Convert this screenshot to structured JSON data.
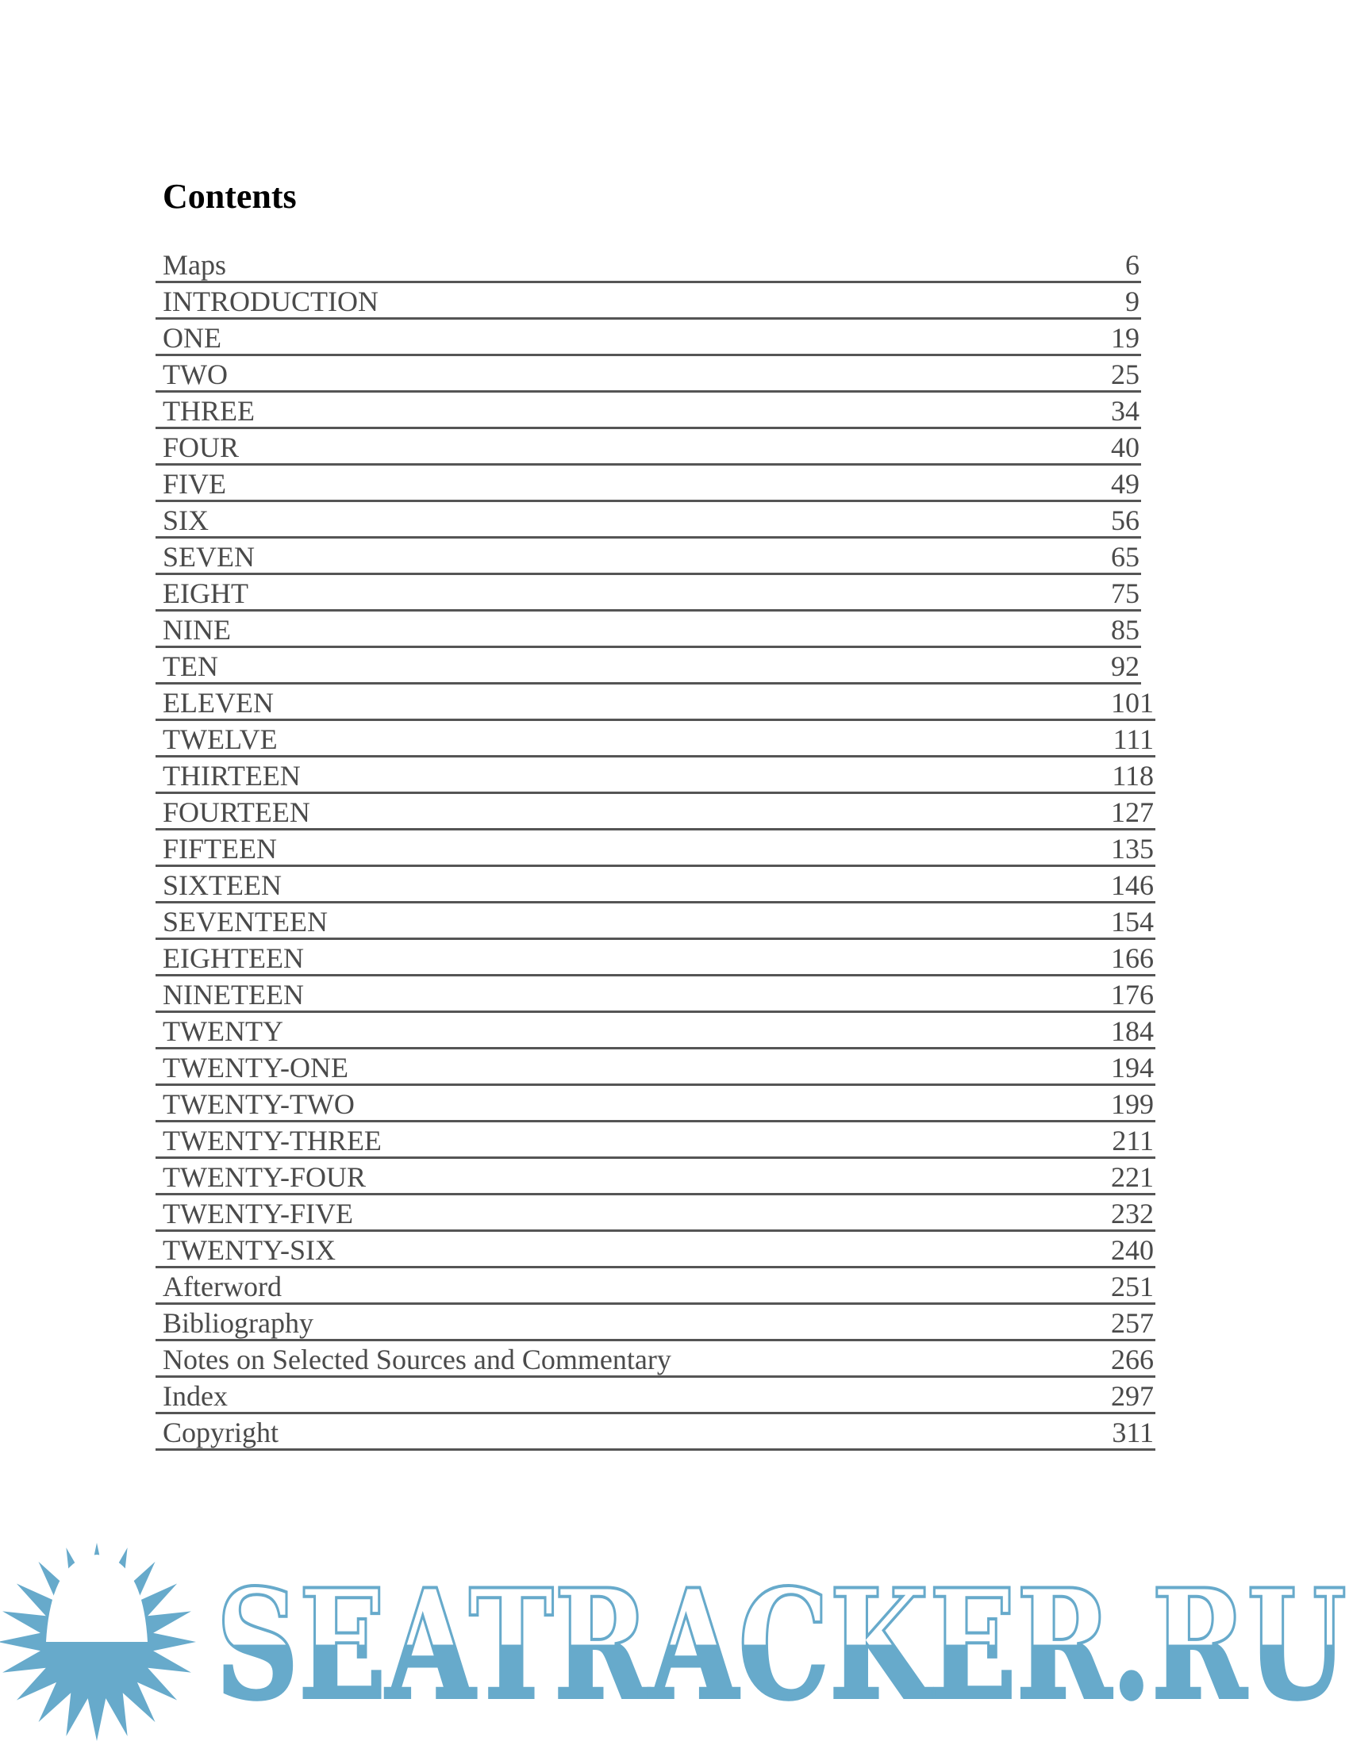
{
  "title": "Contents",
  "entries": [
    {
      "label": "Maps",
      "page": "6"
    },
    {
      "label": "INTRODUCTION",
      "page": "9"
    },
    {
      "label": "ONE",
      "page": "19"
    },
    {
      "label": "TWO",
      "page": "25"
    },
    {
      "label": "THREE",
      "page": "34"
    },
    {
      "label": "FOUR",
      "page": "40"
    },
    {
      "label": "FIVE",
      "page": "49"
    },
    {
      "label": "SIX",
      "page": "56"
    },
    {
      "label": "SEVEN",
      "page": "65"
    },
    {
      "label": "EIGHT",
      "page": "75"
    },
    {
      "label": "NINE",
      "page": "85"
    },
    {
      "label": "TEN",
      "page": "92"
    },
    {
      "label": "ELEVEN",
      "page": "101"
    },
    {
      "label": "TWELVE",
      "page": "111"
    },
    {
      "label": "THIRTEEN",
      "page": "118"
    },
    {
      "label": "FOURTEEN",
      "page": "127"
    },
    {
      "label": "FIFTEEN",
      "page": "135"
    },
    {
      "label": "SIXTEEN",
      "page": "146"
    },
    {
      "label": "SEVENTEEN",
      "page": "154"
    },
    {
      "label": "EIGHTEEN",
      "page": "166"
    },
    {
      "label": "NINETEEN",
      "page": "176"
    },
    {
      "label": "TWENTY",
      "page": "184"
    },
    {
      "label": "TWENTY-ONE",
      "page": "194"
    },
    {
      "label": "TWENTY-TWO",
      "page": "199"
    },
    {
      "label": "TWENTY-THREE",
      "page": "211"
    },
    {
      "label": "TWENTY-FOUR",
      "page": "221"
    },
    {
      "label": "TWENTY-FIVE",
      "page": "232"
    },
    {
      "label": "TWENTY-SIX",
      "page": "240"
    },
    {
      "label": "Afterword",
      "page": "251"
    },
    {
      "label": "Bibliography",
      "page": "257"
    },
    {
      "label": "Notes on Selected Sources and Commentary",
      "page": "266"
    },
    {
      "label": "Index",
      "page": "297"
    },
    {
      "label": "Copyright",
      "page": "311"
    }
  ],
  "watermark": {
    "text": "SEATRACKER.RU",
    "color": "#67aacb"
  }
}
